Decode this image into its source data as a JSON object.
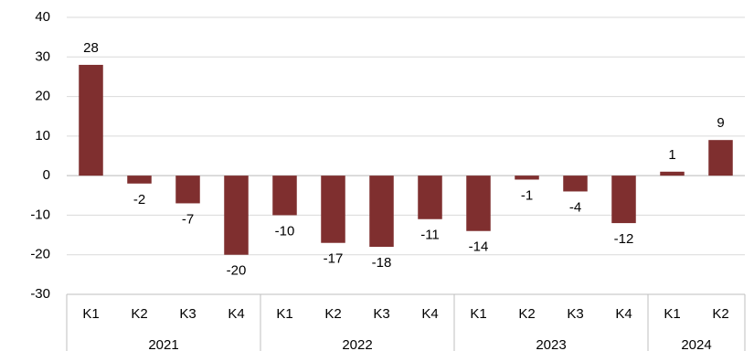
{
  "chart_data": {
    "type": "bar",
    "categories": [
      "K1",
      "K2",
      "K3",
      "K4",
      "K1",
      "K2",
      "K3",
      "K4",
      "K1",
      "K2",
      "K3",
      "K4",
      "K1",
      "K2"
    ],
    "category_groups": [
      "2021",
      "2021",
      "2021",
      "2021",
      "2022",
      "2022",
      "2022",
      "2022",
      "2023",
      "2023",
      "2023",
      "2023",
      "2024",
      "2024"
    ],
    "values": [
      28,
      -2,
      -7,
      -20,
      -10,
      -17,
      -18,
      -11,
      -14,
      -1,
      -4,
      -12,
      1,
      9
    ],
    "color": "#7f2f2f",
    "ylim": [
      -30,
      40
    ],
    "yticks": [
      -30,
      -20,
      -10,
      0,
      10,
      20,
      30,
      40
    ],
    "grid": true
  }
}
